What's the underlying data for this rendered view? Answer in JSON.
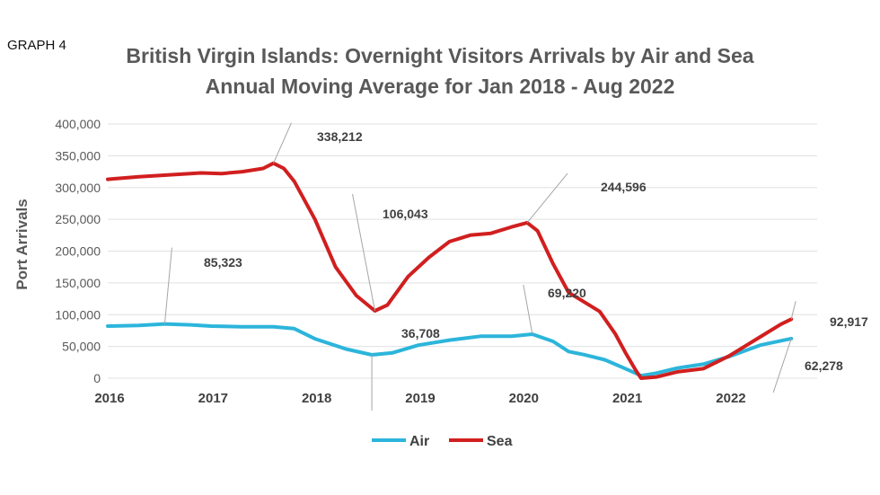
{
  "graph_label": "GRAPH 4",
  "chart_data": {
    "type": "line",
    "title": "British Virgin Islands: Overnight Visitors Arrivals by Air and Sea",
    "subtitle": "Annual Moving Average for Jan 2018 - Aug 2022",
    "ylabel": "Port Arrivals",
    "xlabel": "",
    "ylim": [
      0,
      400000
    ],
    "y_ticks": [
      "0",
      "50,000",
      "100,000",
      "150,000",
      "200,000",
      "250,000",
      "300,000",
      "350,000",
      "400,000"
    ],
    "x_ticks": [
      "2016",
      "2017",
      "2018",
      "2019",
      "2020",
      "2021",
      "2022"
    ],
    "legend": "bottom",
    "colors": {
      "Air": "#2CB5DB",
      "Sea": "#D11F1F"
    },
    "series": [
      {
        "name": "Air",
        "x": [
          2016.0,
          2016.3,
          2016.55,
          2016.8,
          2017.0,
          2017.3,
          2017.6,
          2017.8,
          2018.0,
          2018.3,
          2018.55,
          2018.75,
          2019.0,
          2019.3,
          2019.6,
          2019.9,
          2020.1,
          2020.3,
          2020.45,
          2020.6,
          2020.8,
          2021.0,
          2021.15,
          2021.3,
          2021.5,
          2021.75,
          2022.0,
          2022.3,
          2022.6
        ],
        "y": [
          82000,
          83000,
          85323,
          84000,
          82000,
          81000,
          81000,
          78000,
          62000,
          46000,
          36708,
          40000,
          52000,
          60000,
          66000,
          66000,
          69220,
          58000,
          42000,
          37000,
          29000,
          15000,
          4000,
          8000,
          16000,
          22000,
          34000,
          52000,
          62278
        ]
      },
      {
        "name": "Sea",
        "x": [
          2016.0,
          2016.3,
          2016.6,
          2016.9,
          2017.1,
          2017.3,
          2017.5,
          2017.6,
          2017.7,
          2017.8,
          2018.0,
          2018.2,
          2018.4,
          2018.58,
          2018.7,
          2018.9,
          2019.1,
          2019.3,
          2019.5,
          2019.7,
          2019.9,
          2020.05,
          2020.15,
          2020.3,
          2020.45,
          2020.55,
          2020.75,
          2020.9,
          2021.0,
          2021.1,
          2021.15,
          2021.3,
          2021.5,
          2021.75,
          2022.0,
          2022.3,
          2022.5,
          2022.6
        ],
        "y": [
          313000,
          317000,
          320000,
          323000,
          322000,
          325000,
          330000,
          338212,
          330000,
          310000,
          250000,
          175000,
          130000,
          106043,
          115000,
          160000,
          190000,
          215000,
          225000,
          228000,
          238000,
          244596,
          232000,
          180000,
          135000,
          125000,
          105000,
          70000,
          40000,
          12000,
          0,
          2000,
          10000,
          15000,
          35000,
          65000,
          85000,
          92917
        ]
      }
    ],
    "annotations": [
      {
        "text": "338,212",
        "x": 2017.6,
        "y": 338212
      },
      {
        "text": "106,043",
        "x": 2018.58,
        "y": 106043
      },
      {
        "text": "244,596",
        "x": 2020.05,
        "y": 244596
      },
      {
        "text": "85,323",
        "x": 2016.55,
        "y": 85323
      },
      {
        "text": "36,708",
        "x": 2018.55,
        "y": 36708
      },
      {
        "text": "69,220",
        "x": 2020.1,
        "y": 69220
      },
      {
        "text": "92,917",
        "x": 2022.6,
        "y": 92917
      },
      {
        "text": "62,278",
        "x": 2022.6,
        "y": 62278
      }
    ]
  }
}
